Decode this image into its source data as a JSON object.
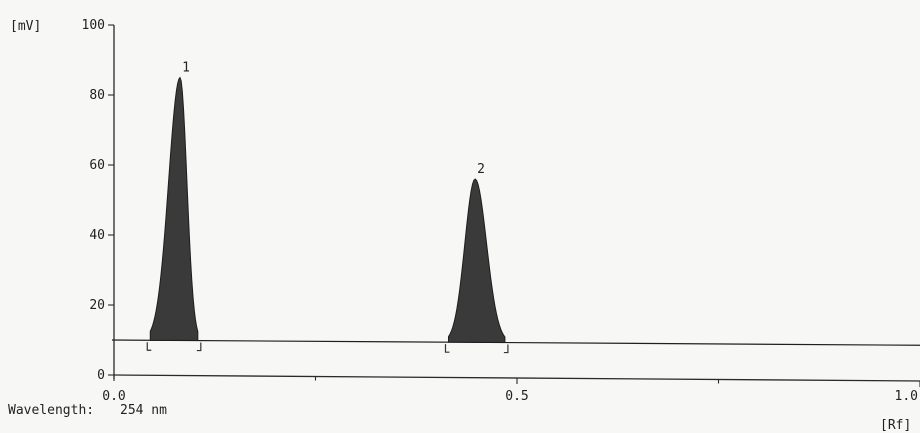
{
  "chart_data": {
    "type": "area",
    "y_unit_label": "[mV]",
    "x_unit_label": "[Rf]",
    "xlim": [
      0.0,
      1.0
    ],
    "ylim": [
      0,
      100
    ],
    "x_ticks": [
      {
        "value": 0.0,
        "label": "0.0"
      },
      {
        "value": 0.5,
        "label": "0.5"
      },
      {
        "value": 1.0,
        "label": "1.0"
      }
    ],
    "x_minor_ticks": [
      0.25,
      0.75
    ],
    "y_ticks": [
      {
        "value": 0,
        "label": "0"
      },
      {
        "value": 20,
        "label": "20"
      },
      {
        "value": 40,
        "label": "40"
      },
      {
        "value": 60,
        "label": "60"
      },
      {
        "value": 80,
        "label": "80"
      },
      {
        "value": 100,
        "label": "100"
      }
    ],
    "baseline": {
      "start": 10,
      "end": 8.5
    },
    "peaks": [
      {
        "label": "1",
        "rf": 0.082,
        "height": 85,
        "start": 0.045,
        "end": 0.104
      },
      {
        "label": "2",
        "rf": 0.448,
        "height": 56,
        "start": 0.415,
        "end": 0.485
      }
    ],
    "footer": {
      "label": "Wavelength:",
      "value": "254 nm"
    },
    "grid": false
  }
}
